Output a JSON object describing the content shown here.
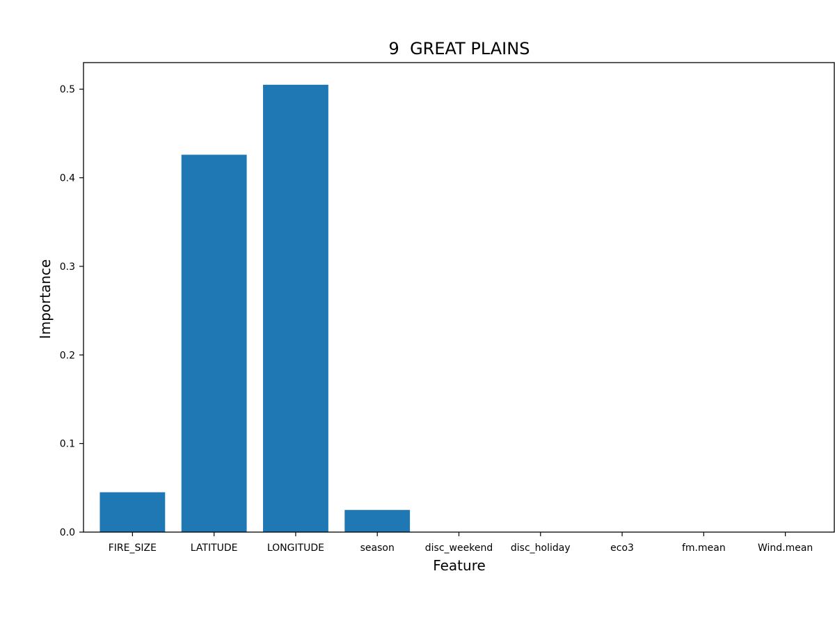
{
  "chart_data": {
    "type": "bar",
    "title": "9  GREAT PLAINS",
    "xlabel": "Feature",
    "ylabel": "Importance",
    "categories": [
      "FIRE_SIZE",
      "LATITUDE",
      "LONGITUDE",
      "season",
      "disc_weekend",
      "disc_holiday",
      "eco3",
      "fm.mean",
      "Wind.mean"
    ],
    "values": [
      0.045,
      0.426,
      0.505,
      0.025,
      0.0,
      0.0,
      0.0,
      0.0,
      0.0
    ],
    "ylim": [
      0,
      0.53
    ],
    "yticks": [
      "0.0",
      "0.1",
      "0.2",
      "0.3",
      "0.4",
      "0.5"
    ],
    "bar_color": "#1f77b4",
    "grid": false,
    "legend": "none"
  }
}
